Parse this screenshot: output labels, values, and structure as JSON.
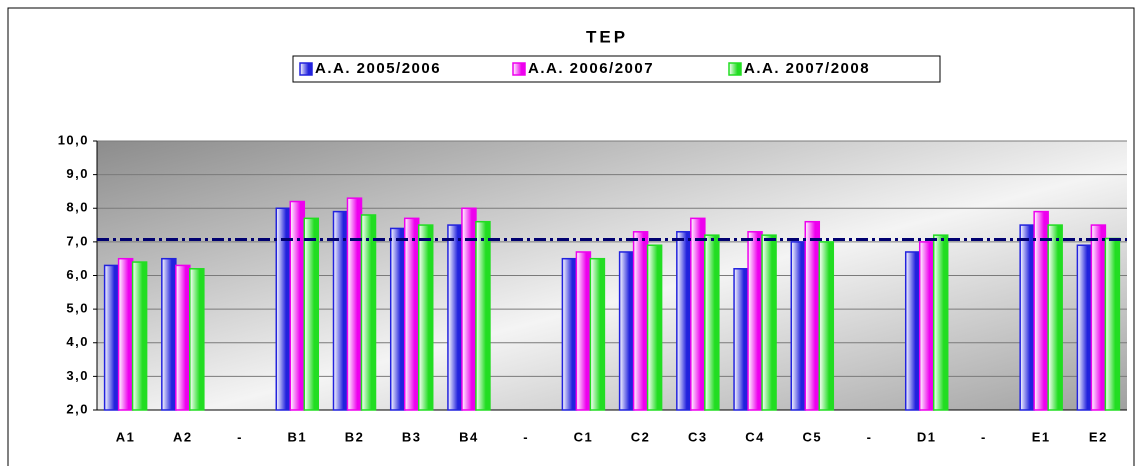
{
  "chart_data": {
    "type": "bar",
    "title": "TEP",
    "categories": [
      "A1",
      "A2",
      "-",
      "B1",
      "B2",
      "B3",
      "B4",
      "-",
      "C1",
      "C2",
      "C3",
      "C4",
      "C5",
      "-",
      "D1",
      "-",
      "E1",
      "E2"
    ],
    "series": [
      {
        "name": "A.A. 2005/2006",
        "color": "#2222dd",
        "values": [
          6.3,
          6.5,
          null,
          8.0,
          7.9,
          7.4,
          7.5,
          null,
          6.5,
          6.7,
          7.3,
          6.2,
          7.0,
          null,
          6.7,
          null,
          7.5,
          6.9
        ]
      },
      {
        "name": "A.A. 2006/2007",
        "color": "#ee00ee",
        "values": [
          6.5,
          6.3,
          null,
          8.2,
          8.3,
          7.7,
          8.0,
          null,
          6.7,
          7.3,
          7.7,
          7.3,
          7.6,
          null,
          7.0,
          null,
          7.9,
          7.5
        ]
      },
      {
        "name": "A.A. 2007/2008",
        "color": "#22dd22",
        "values": [
          6.4,
          6.2,
          null,
          7.7,
          7.8,
          7.5,
          7.6,
          null,
          6.5,
          6.9,
          7.2,
          7.2,
          7.0,
          null,
          7.2,
          null,
          7.5,
          7.1
        ]
      }
    ],
    "reference_line": 7.07,
    "ylim": [
      2,
      10
    ],
    "yticks": [
      {
        "value": 2,
        "label": "2,0"
      },
      {
        "value": 3,
        "label": "3,0"
      },
      {
        "value": 4,
        "label": "4,0"
      },
      {
        "value": 5,
        "label": "5,0"
      },
      {
        "value": 6,
        "label": "6,0"
      },
      {
        "value": 7,
        "label": "7,0"
      },
      {
        "value": 8,
        "label": "8,0"
      },
      {
        "value": 9,
        "label": "9,0"
      },
      {
        "value": 10,
        "label": "10,0"
      }
    ],
    "grid": true,
    "legend": "top"
  }
}
